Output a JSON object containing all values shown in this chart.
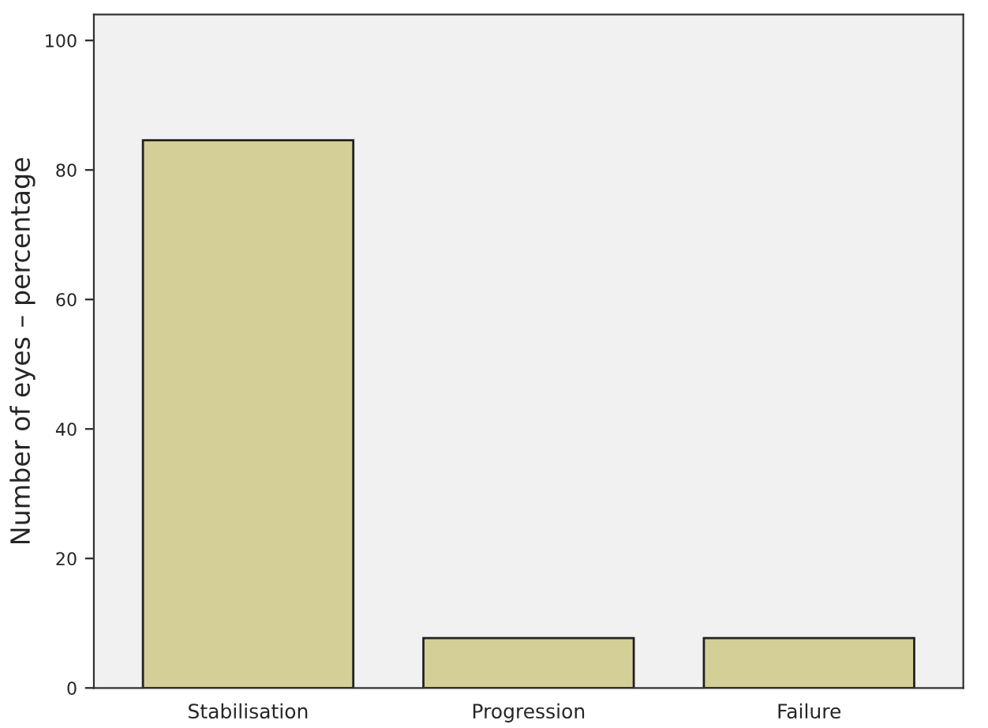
{
  "chart_data": {
    "type": "bar",
    "ylabel": "Number of eyes – percentage",
    "categories": [
      "Stabilisation",
      "Progression",
      "Failure"
    ],
    "values": [
      84.6,
      7.7,
      7.7
    ],
    "color": "#d4cf96",
    "ylim": [
      0,
      104
    ],
    "yticks": [
      0,
      20,
      40,
      60,
      80,
      100
    ],
    "grid": false,
    "legend": false
  }
}
